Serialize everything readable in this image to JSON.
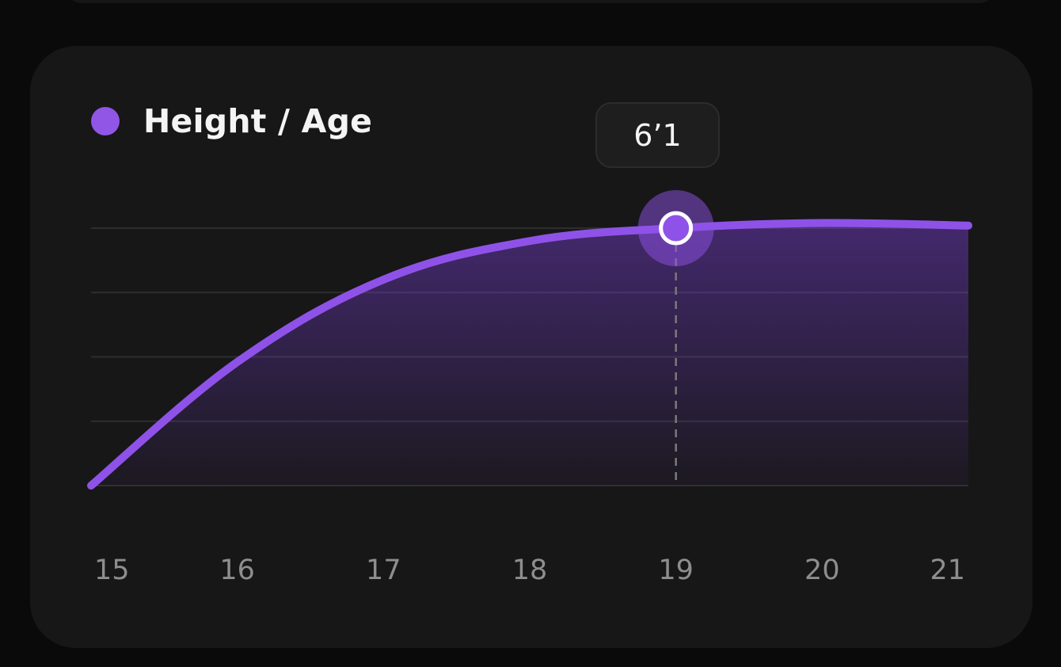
{
  "legend": {
    "label": "Height / Age",
    "color": "#9156e6"
  },
  "tooltip": {
    "value": "6’1"
  },
  "chart_data": {
    "type": "area",
    "title": "",
    "xlabel": "",
    "ylabel": "",
    "series": [
      {
        "name": "Height / Age",
        "x": [
          15,
          16,
          17,
          18,
          19,
          20,
          21
        ],
        "values": [
          0,
          0.48,
          0.8,
          0.95,
          1.0,
          1.02,
          1.01
        ]
      }
    ],
    "x_ticks": [
      "15",
      "16",
      "17",
      "18",
      "19",
      "20",
      "21"
    ],
    "xlim": [
      15,
      21
    ],
    "ylim": [
      0,
      1.0
    ],
    "grid": "horizontal",
    "highlight": {
      "x": 19,
      "label": "6’1"
    },
    "colors": {
      "line": "#8f52e8",
      "gridline": "#2e2e2e",
      "guide": "#7a7a7a"
    }
  }
}
